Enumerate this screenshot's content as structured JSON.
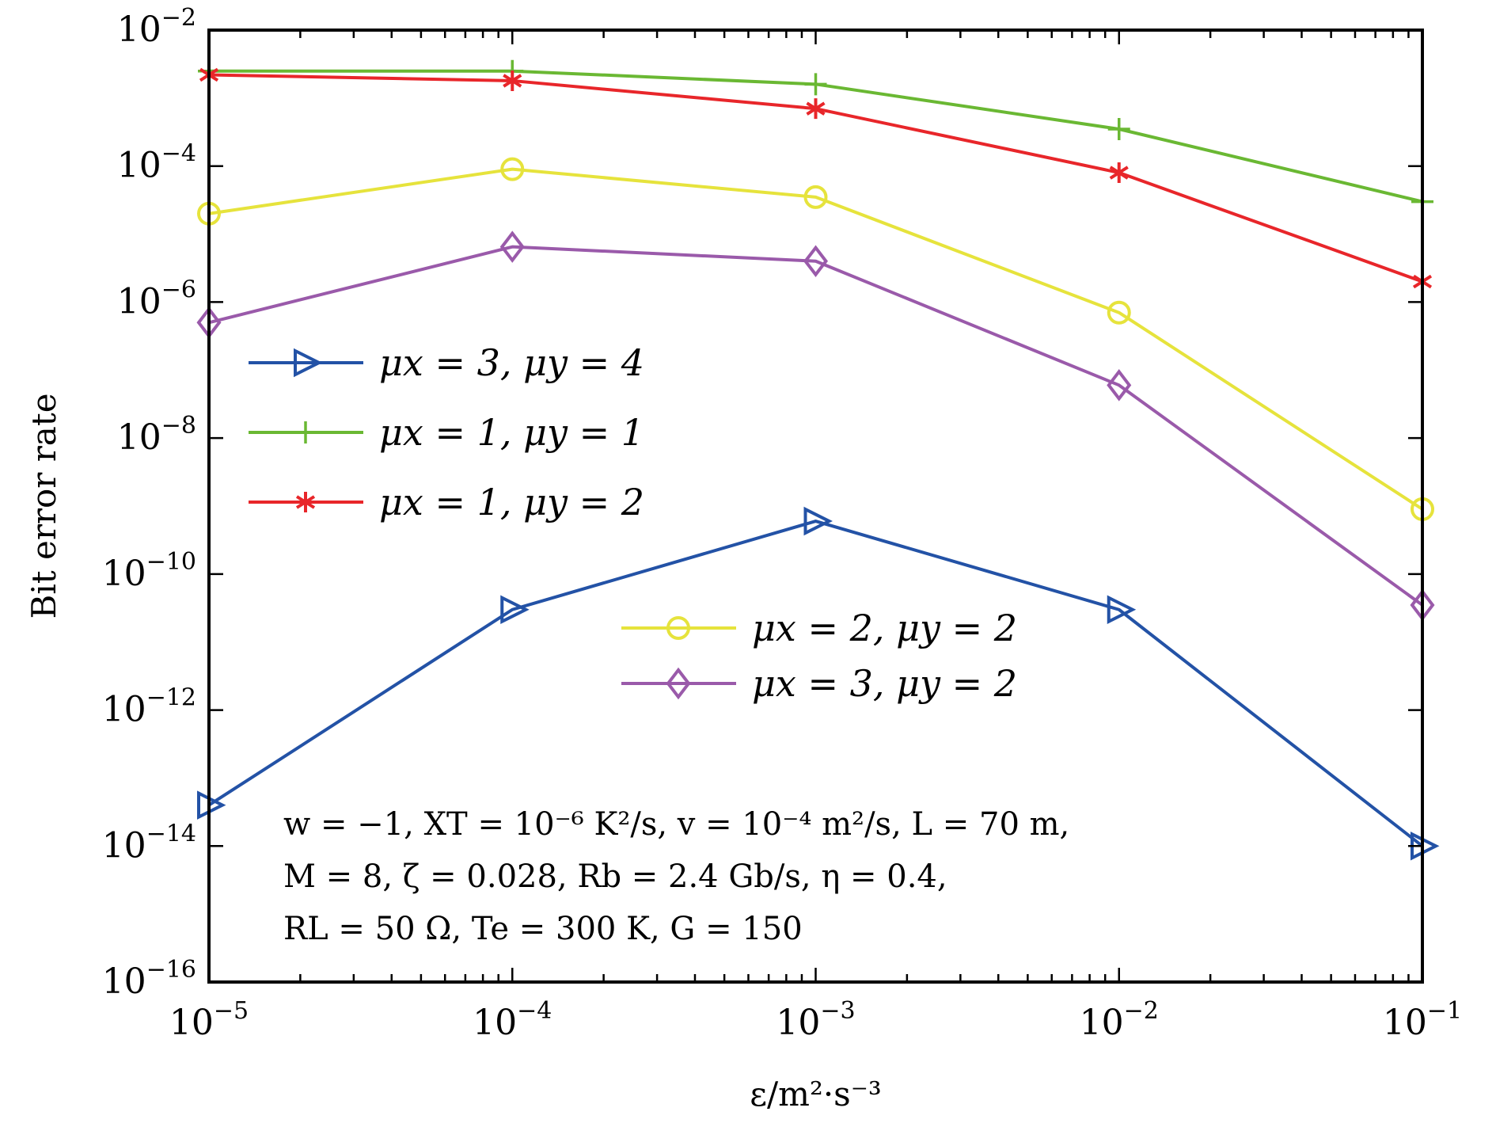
{
  "chart_data": {
    "type": "line",
    "xscale": "log",
    "yscale": "log",
    "xlim": [
      1e-05,
      0.1
    ],
    "ylim": [
      1e-16,
      0.01
    ],
    "xlabel": "ε/m²·s⁻³",
    "ylabel": "Bit error rate",
    "x_ticks": [
      "10",
      "10",
      "10",
      "10",
      "10"
    ],
    "x_tick_exps": [
      "−5",
      "−4",
      "−3",
      "−2",
      "−1"
    ],
    "y_ticks": [
      "10",
      "10",
      "10",
      "10",
      "10",
      "10",
      "10",
      "10"
    ],
    "y_tick_exps": [
      "−2",
      "−4",
      "−6",
      "−8",
      "−10",
      "−12",
      "−14",
      "−16"
    ],
    "x": [
      1e-05,
      0.0001,
      0.001,
      0.01,
      0.1
    ],
    "grid": false,
    "series": [
      {
        "name": "μx = 3, μy = 4",
        "color": "#2352a6",
        "marker": "triangle-right",
        "values": [
          4e-14,
          3e-11,
          6e-10,
          3e-11,
          1e-14
        ]
      },
      {
        "name": "μx = 1, μy = 1",
        "color": "#6ab833",
        "marker": "plus",
        "values": [
          0.0025,
          0.0025,
          0.0016,
          0.00035,
          3e-05
        ]
      },
      {
        "name": "μx = 1, μy = 2",
        "color": "#e8262a",
        "marker": "asterisk",
        "values": [
          0.0022,
          0.0018,
          0.0007,
          8e-05,
          2e-06
        ]
      },
      {
        "name": "μx = 2, μy = 2",
        "color": "#e6e33c",
        "marker": "circle",
        "values": [
          2e-05,
          9e-05,
          3.5e-05,
          7e-07,
          9e-10
        ]
      },
      {
        "name": "μx = 3, μy = 2",
        "color": "#9a5aaa",
        "marker": "diamond",
        "values": [
          5e-07,
          6.5e-06,
          4e-06,
          6e-08,
          3.5e-11
        ]
      }
    ],
    "legend_upper": [
      0,
      1,
      2
    ],
    "legend_lower": [
      3,
      4
    ],
    "annotation": [
      "w = −1, XT = 10⁻⁶ K²/s, v = 10⁻⁴ m²/s, L = 70 m,",
      "M = 8,  ζ = 0.028, Rb = 2.4 Gb/s, η = 0.4,",
      "RL = 50 Ω, Te = 300 K, G = 150"
    ]
  }
}
